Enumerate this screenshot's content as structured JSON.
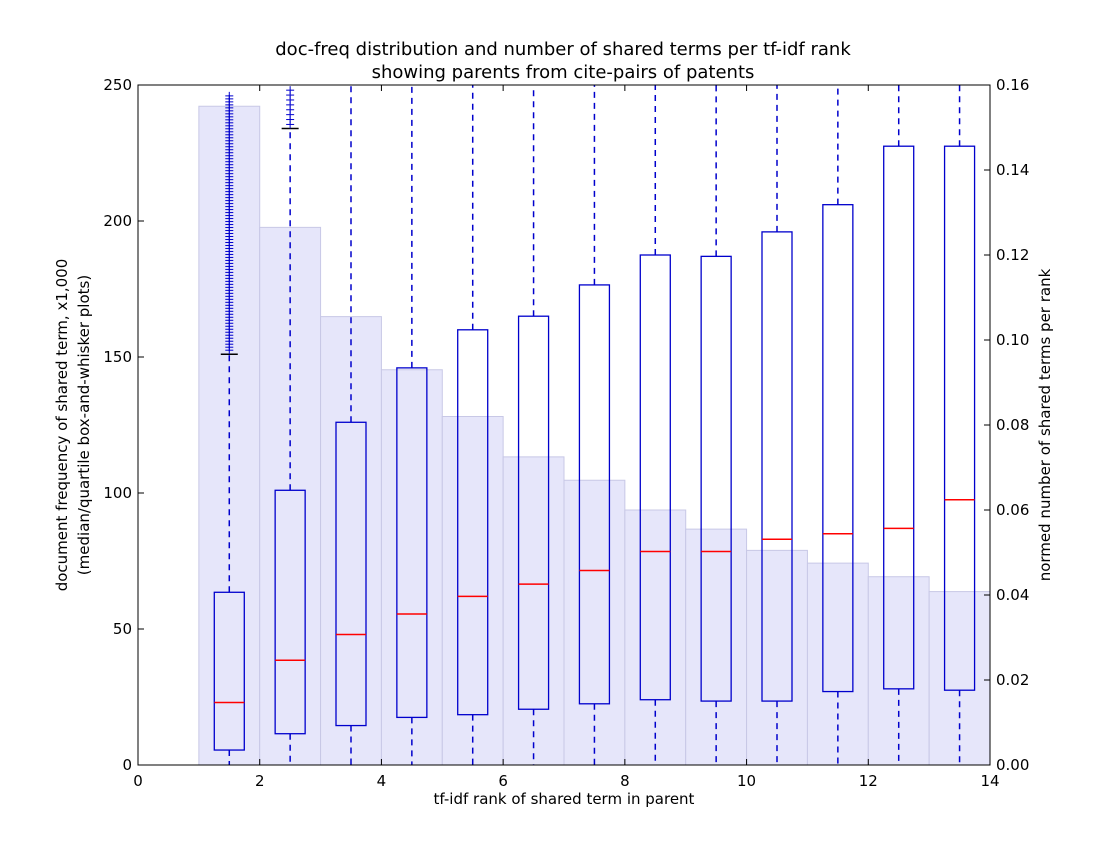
{
  "chart_data": {
    "type": "boxplot",
    "title": [
      "doc-freq distribution and number of shared terms per tf-idf rank",
      "showing parents from cite-pairs of patents"
    ],
    "xlabel": "tf-idf rank of shared term in parent",
    "ylabel": [
      "document frequency of shared term, x1,000",
      "(median/quartile box-and-whisker plots)"
    ],
    "ylabel_right": "normed number of shared terms per rank",
    "xlim": [
      0,
      14
    ],
    "ylim": [
      0,
      250
    ],
    "ylim_right": [
      0,
      0.16
    ],
    "x_ticks": [
      "0",
      "2",
      "4",
      "6",
      "8",
      "10",
      "12",
      "14"
    ],
    "y_ticks": [
      "0",
      "50",
      "100",
      "150",
      "200",
      "250"
    ],
    "y_right_ticks": [
      "0.00",
      "0.02",
      "0.04",
      "0.06",
      "0.08",
      "0.10",
      "0.12",
      "0.14",
      "0.16"
    ],
    "grid": false,
    "colors": {
      "box": "#0000cc",
      "median": "#ff0000",
      "bars": "#e6e6fa",
      "bar_edge": "#c8c8e6",
      "cap": "#000000"
    },
    "bars": {
      "axis": "right",
      "x_start": [
        1,
        2,
        3,
        4,
        5,
        6,
        7,
        8,
        9,
        10,
        11,
        12,
        13
      ],
      "values": [
        0.155,
        0.1265,
        0.1055,
        0.093,
        0.082,
        0.0725,
        0.067,
        0.06,
        0.0555,
        0.0505,
        0.0475,
        0.0443,
        0.0408
      ]
    },
    "boxes": [
      {
        "rank": 1,
        "x": 1.5,
        "q1": 5.5,
        "median": 23,
        "q3": 63.5,
        "whisker_low": 0,
        "whisker_high": 151,
        "outliers_from": 151,
        "outliers_to": 246
      },
      {
        "rank": 2,
        "x": 2.5,
        "q1": 11.5,
        "median": 38.5,
        "q3": 101,
        "whisker_low": 0,
        "whisker_high": 234,
        "outliers_from": 234,
        "outliers_to": 250
      },
      {
        "rank": 3,
        "x": 3.5,
        "q1": 14.5,
        "median": 48,
        "q3": 126,
        "whisker_low": 0,
        "whisker_high": 250
      },
      {
        "rank": 4,
        "x": 4.5,
        "q1": 17.5,
        "median": 55.5,
        "q3": 146,
        "whisker_low": 0,
        "whisker_high": 250
      },
      {
        "rank": 5,
        "x": 5.5,
        "q1": 18.5,
        "median": 62,
        "q3": 160,
        "whisker_low": 0,
        "whisker_high": 250
      },
      {
        "rank": 6,
        "x": 6.5,
        "q1": 20.5,
        "median": 66.5,
        "q3": 165,
        "whisker_low": 0,
        "whisker_high": 250
      },
      {
        "rank": 7,
        "x": 7.5,
        "q1": 22.5,
        "median": 71.5,
        "q3": 176.5,
        "whisker_low": 0,
        "whisker_high": 250
      },
      {
        "rank": 8,
        "x": 8.5,
        "q1": 24,
        "median": 78.5,
        "q3": 187.5,
        "whisker_low": 0,
        "whisker_high": 250
      },
      {
        "rank": 9,
        "x": 9.5,
        "q1": 23.5,
        "median": 78.5,
        "q3": 187,
        "whisker_low": 0,
        "whisker_high": 250
      },
      {
        "rank": 10,
        "x": 10.5,
        "q1": 23.5,
        "median": 83,
        "q3": 196,
        "whisker_low": 0,
        "whisker_high": 250
      },
      {
        "rank": 11,
        "x": 11.5,
        "q1": 27,
        "median": 85,
        "q3": 206,
        "whisker_low": 0,
        "whisker_high": 250
      },
      {
        "rank": 12,
        "x": 12.5,
        "q1": 28,
        "median": 87,
        "q3": 227.5,
        "whisker_low": 0,
        "whisker_high": 250
      },
      {
        "rank": 13,
        "x": 13.5,
        "q1": 27.5,
        "median": 97.5,
        "q3": 227.5,
        "whisker_low": 0,
        "whisker_high": 250
      }
    ]
  }
}
